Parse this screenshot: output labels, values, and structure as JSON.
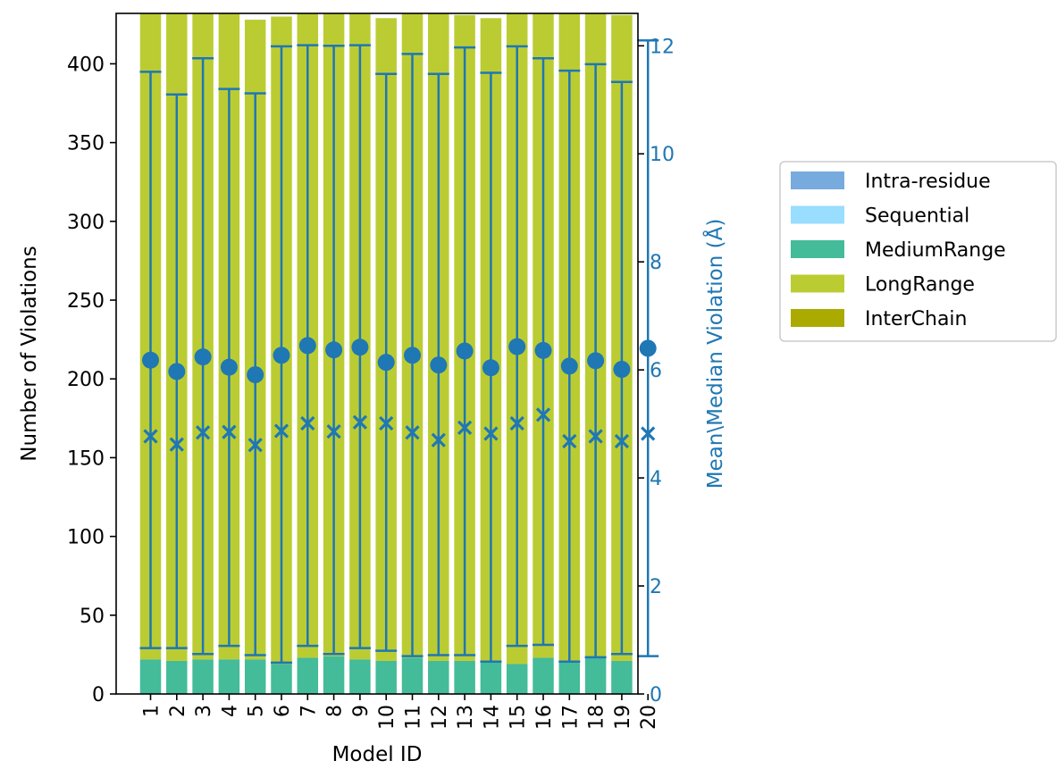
{
  "chart_data": {
    "type": "bar",
    "stacked": true,
    "xlabel": "Model ID",
    "ylabel": "Number of Violations",
    "ylabel_right": "Mean\\Median Violation (Å)",
    "ylim": [
      0,
      432
    ],
    "ylim_right": [
      0,
      12.6
    ],
    "yticks": [
      0,
      50,
      100,
      150,
      200,
      250,
      300,
      350,
      400
    ],
    "yticks_right": [
      0,
      2,
      4,
      6,
      8,
      10,
      12
    ],
    "categories": [
      "1",
      "2",
      "3",
      "4",
      "5",
      "6",
      "7",
      "8",
      "9",
      "10",
      "11",
      "12",
      "13",
      "14",
      "15",
      "16",
      "17",
      "18",
      "19",
      "20"
    ],
    "series": [
      {
        "name": "Intra-residue",
        "color": "#77aadd",
        "values": [
          0,
          0,
          0,
          0,
          0,
          0,
          0,
          0,
          0,
          0,
          0,
          0,
          0,
          0,
          0,
          0,
          0,
          0,
          0,
          0
        ]
      },
      {
        "name": "Sequential",
        "color": "#99ddff",
        "values": [
          0,
          0,
          0,
          0,
          0,
          0,
          0,
          0,
          0,
          0,
          0,
          0,
          0,
          0,
          0,
          0,
          0,
          0,
          0,
          0
        ]
      },
      {
        "name": "MediumRange",
        "color": "#44bb99",
        "values": [
          22,
          21,
          22,
          22,
          22,
          19,
          23,
          24,
          22,
          21,
          23,
          21,
          21,
          20,
          19,
          23,
          21,
          23,
          21,
          22
        ]
      },
      {
        "name": "LongRange",
        "color": "#bbcc33",
        "values": [
          411,
          411,
          411,
          411,
          406,
          411,
          411,
          411,
          411,
          408,
          411,
          411,
          410,
          409,
          413,
          411,
          411,
          410,
          410,
          406
        ]
      },
      {
        "name": "InterChain",
        "color": "#aaaa00",
        "values": [
          0,
          0,
          0,
          0,
          0,
          0,
          0,
          0,
          0,
          0,
          0,
          0,
          0,
          0,
          0,
          0,
          0,
          0,
          0,
          0
        ]
      }
    ],
    "right_axis_series": {
      "color": "#1f77b4",
      "mean": [
        6.18,
        5.97,
        6.24,
        6.05,
        5.91,
        6.27,
        6.45,
        6.37,
        6.42,
        6.14,
        6.27,
        6.09,
        6.35,
        6.04,
        6.43,
        6.36,
        6.07,
        6.17,
        6.01,
        6.4
      ],
      "median": [
        4.77,
        4.62,
        4.84,
        4.85,
        4.61,
        4.87,
        5.01,
        4.86,
        5.03,
        5.01,
        4.84,
        4.7,
        4.93,
        4.82,
        5.01,
        5.17,
        4.68,
        4.77,
        4.68,
        4.82
      ],
      "err_low": [
        0.85,
        0.85,
        0.74,
        0.89,
        0.72,
        0.58,
        0.89,
        0.74,
        0.85,
        0.8,
        0.7,
        0.72,
        0.72,
        0.6,
        0.89,
        0.91,
        0.6,
        0.68,
        0.74,
        0.7
      ],
      "err_high": [
        11.52,
        11.1,
        11.77,
        11.2,
        11.12,
        11.99,
        12.01,
        12.0,
        12.01,
        11.48,
        11.85,
        11.48,
        11.97,
        11.5,
        11.99,
        11.77,
        11.54,
        11.66,
        11.33,
        12.1
      ]
    },
    "legend": {
      "placement": "right-outside",
      "items": [
        "Intra-residue",
        "Sequential",
        "MediumRange",
        "LongRange",
        "InterChain"
      ]
    }
  }
}
